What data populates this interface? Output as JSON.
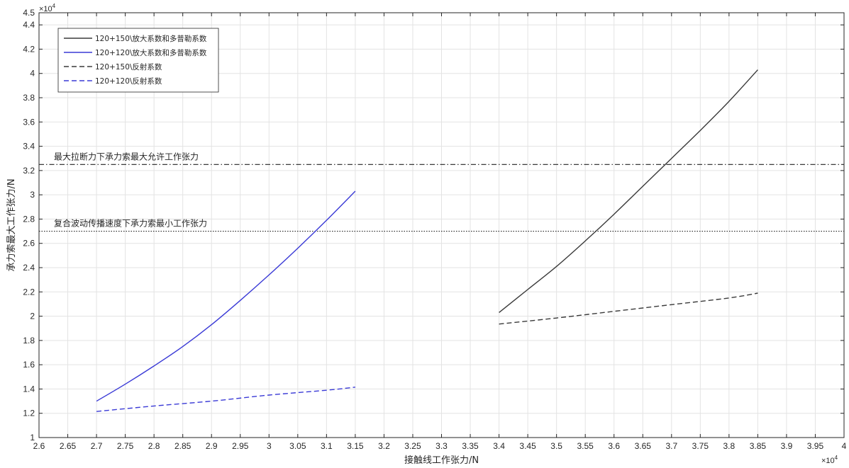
{
  "chart_data": {
    "type": "line",
    "title": "",
    "xlabel": "接触线工作张力/N",
    "ylabel": "承力索最大工作张力/N",
    "x_exponent_label": "×10",
    "x_exponent_power": "4",
    "y_exponent_label": "×10",
    "y_exponent_power": "4",
    "xlim": [
      26000,
      40000
    ],
    "ylim": [
      10000,
      45000
    ],
    "x_ticks": [
      26000,
      26500,
      27000,
      27500,
      28000,
      28500,
      29000,
      29500,
      30000,
      30500,
      31000,
      31500,
      32000,
      32500,
      33000,
      33500,
      34000,
      34500,
      35000,
      35500,
      36000,
      36500,
      37000,
      37500,
      38000,
      38500,
      39000,
      39500,
      40000
    ],
    "x_tick_labels": [
      "2.6",
      "2.65",
      "2.7",
      "2.75",
      "2.8",
      "2.85",
      "2.9",
      "2.95",
      "3",
      "3.05",
      "3.1",
      "3.15",
      "3.2",
      "3.25",
      "3.3",
      "3.35",
      "3.4",
      "3.45",
      "3.5",
      "3.55",
      "3.6",
      "3.65",
      "3.7",
      "3.75",
      "3.8",
      "3.85",
      "3.9",
      "3.95",
      "4"
    ],
    "y_ticks": [
      10000,
      12000,
      14000,
      16000,
      18000,
      20000,
      22000,
      24000,
      26000,
      28000,
      30000,
      32000,
      34000,
      36000,
      38000,
      40000,
      42000,
      44000,
      45000
    ],
    "y_tick_labels": [
      "1",
      "1.2",
      "1.4",
      "1.6",
      "1.8",
      "2",
      "2.2",
      "2.4",
      "2.6",
      "2.8",
      "3",
      "3.2",
      "3.4",
      "3.6",
      "3.8",
      "4",
      "4.2",
      "4.4",
      "4.5"
    ],
    "grid": true,
    "legend_position": "top-left",
    "series": [
      {
        "name": "120+150\\放大系数和多普勒系数",
        "color": "#3a3a3a",
        "dash": "solid",
        "x": [
          34000,
          34500,
          35000,
          35500,
          36000,
          36500,
          37000,
          37500,
          38000,
          38500
        ],
        "y": [
          20300,
          22200,
          24100,
          26200,
          28400,
          30700,
          33000,
          35300,
          37700,
          40300
        ]
      },
      {
        "name": "120+120\\放大系数和多普勒系数",
        "color": "#3a3ad6",
        "dash": "solid",
        "x": [
          27000,
          27500,
          28000,
          28500,
          29000,
          29500,
          30000,
          30500,
          31000,
          31500
        ],
        "y": [
          13000,
          14400,
          15900,
          17500,
          19300,
          21300,
          23400,
          25600,
          27900,
          30300
        ]
      },
      {
        "name": "120+150\\反射系数",
        "color": "#3a3a3a",
        "dash": "dashed",
        "x": [
          34000,
          35000,
          36000,
          37000,
          38000,
          38500
        ],
        "y": [
          19350,
          19850,
          20400,
          20950,
          21500,
          21900
        ]
      },
      {
        "name": "120+120\\反射系数",
        "color": "#3a3ad6",
        "dash": "dashed",
        "x": [
          27000,
          28000,
          29000,
          30000,
          31000,
          31500
        ],
        "y": [
          12150,
          12600,
          13000,
          13500,
          13900,
          14150
        ]
      }
    ],
    "reference_lines": [
      {
        "label": "最大拉断力下承力索最大允许工作张力",
        "y": 32500,
        "style": "dash-dot",
        "color": "#222222"
      },
      {
        "label": "复合波动传播速度下承力索最小工作张力",
        "y": 27000,
        "style": "dotted",
        "color": "#222222"
      }
    ]
  }
}
